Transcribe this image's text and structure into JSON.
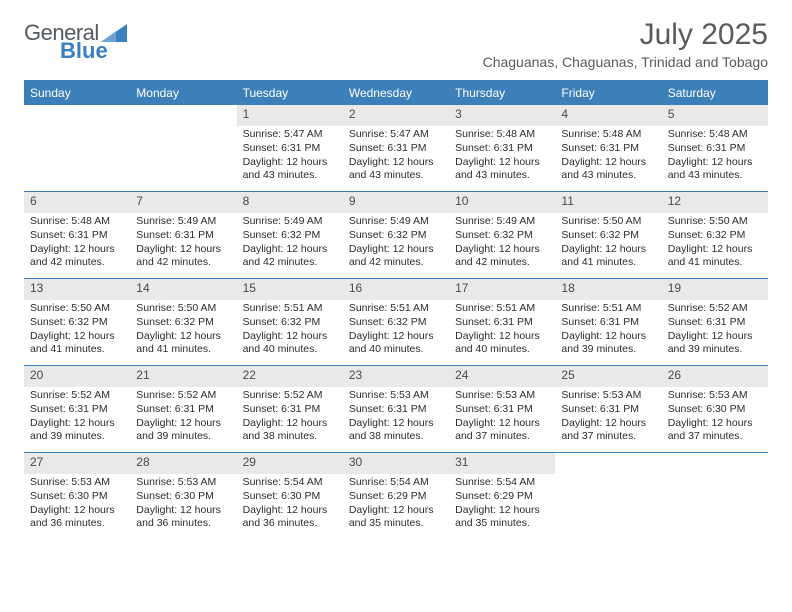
{
  "branding": {
    "word1": "General",
    "word2": "Blue",
    "word1_color": "#555a5f",
    "word2_color": "#3a7fbf",
    "sail_color": "#3a7fbf"
  },
  "title": "July 2025",
  "location": "Chaguanas, Chaguanas, Trinidad and Tobago",
  "colors": {
    "header_blue": "#3d7fb8",
    "daynum_bg": "#e9e9e9",
    "page_bg": "#ffffff",
    "body_text": "#2c2c2c",
    "muted_text": "#5b5b5b"
  },
  "day_labels": [
    "Sunday",
    "Monday",
    "Tuesday",
    "Wednesday",
    "Thursday",
    "Friday",
    "Saturday"
  ],
  "weeks": [
    [
      {
        "day": "",
        "sunrise": "",
        "sunset": "",
        "daylight": ""
      },
      {
        "day": "",
        "sunrise": "",
        "sunset": "",
        "daylight": ""
      },
      {
        "day": "1",
        "sunrise": "Sunrise: 5:47 AM",
        "sunset": "Sunset: 6:31 PM",
        "daylight": "Daylight: 12 hours and 43 minutes."
      },
      {
        "day": "2",
        "sunrise": "Sunrise: 5:47 AM",
        "sunset": "Sunset: 6:31 PM",
        "daylight": "Daylight: 12 hours and 43 minutes."
      },
      {
        "day": "3",
        "sunrise": "Sunrise: 5:48 AM",
        "sunset": "Sunset: 6:31 PM",
        "daylight": "Daylight: 12 hours and 43 minutes."
      },
      {
        "day": "4",
        "sunrise": "Sunrise: 5:48 AM",
        "sunset": "Sunset: 6:31 PM",
        "daylight": "Daylight: 12 hours and 43 minutes."
      },
      {
        "day": "5",
        "sunrise": "Sunrise: 5:48 AM",
        "sunset": "Sunset: 6:31 PM",
        "daylight": "Daylight: 12 hours and 43 minutes."
      }
    ],
    [
      {
        "day": "6",
        "sunrise": "Sunrise: 5:48 AM",
        "sunset": "Sunset: 6:31 PM",
        "daylight": "Daylight: 12 hours and 42 minutes."
      },
      {
        "day": "7",
        "sunrise": "Sunrise: 5:49 AM",
        "sunset": "Sunset: 6:31 PM",
        "daylight": "Daylight: 12 hours and 42 minutes."
      },
      {
        "day": "8",
        "sunrise": "Sunrise: 5:49 AM",
        "sunset": "Sunset: 6:32 PM",
        "daylight": "Daylight: 12 hours and 42 minutes."
      },
      {
        "day": "9",
        "sunrise": "Sunrise: 5:49 AM",
        "sunset": "Sunset: 6:32 PM",
        "daylight": "Daylight: 12 hours and 42 minutes."
      },
      {
        "day": "10",
        "sunrise": "Sunrise: 5:49 AM",
        "sunset": "Sunset: 6:32 PM",
        "daylight": "Daylight: 12 hours and 42 minutes."
      },
      {
        "day": "11",
        "sunrise": "Sunrise: 5:50 AM",
        "sunset": "Sunset: 6:32 PM",
        "daylight": "Daylight: 12 hours and 41 minutes."
      },
      {
        "day": "12",
        "sunrise": "Sunrise: 5:50 AM",
        "sunset": "Sunset: 6:32 PM",
        "daylight": "Daylight: 12 hours and 41 minutes."
      }
    ],
    [
      {
        "day": "13",
        "sunrise": "Sunrise: 5:50 AM",
        "sunset": "Sunset: 6:32 PM",
        "daylight": "Daylight: 12 hours and 41 minutes."
      },
      {
        "day": "14",
        "sunrise": "Sunrise: 5:50 AM",
        "sunset": "Sunset: 6:32 PM",
        "daylight": "Daylight: 12 hours and 41 minutes."
      },
      {
        "day": "15",
        "sunrise": "Sunrise: 5:51 AM",
        "sunset": "Sunset: 6:32 PM",
        "daylight": "Daylight: 12 hours and 40 minutes."
      },
      {
        "day": "16",
        "sunrise": "Sunrise: 5:51 AM",
        "sunset": "Sunset: 6:32 PM",
        "daylight": "Daylight: 12 hours and 40 minutes."
      },
      {
        "day": "17",
        "sunrise": "Sunrise: 5:51 AM",
        "sunset": "Sunset: 6:31 PM",
        "daylight": "Daylight: 12 hours and 40 minutes."
      },
      {
        "day": "18",
        "sunrise": "Sunrise: 5:51 AM",
        "sunset": "Sunset: 6:31 PM",
        "daylight": "Daylight: 12 hours and 39 minutes."
      },
      {
        "day": "19",
        "sunrise": "Sunrise: 5:52 AM",
        "sunset": "Sunset: 6:31 PM",
        "daylight": "Daylight: 12 hours and 39 minutes."
      }
    ],
    [
      {
        "day": "20",
        "sunrise": "Sunrise: 5:52 AM",
        "sunset": "Sunset: 6:31 PM",
        "daylight": "Daylight: 12 hours and 39 minutes."
      },
      {
        "day": "21",
        "sunrise": "Sunrise: 5:52 AM",
        "sunset": "Sunset: 6:31 PM",
        "daylight": "Daylight: 12 hours and 39 minutes."
      },
      {
        "day": "22",
        "sunrise": "Sunrise: 5:52 AM",
        "sunset": "Sunset: 6:31 PM",
        "daylight": "Daylight: 12 hours and 38 minutes."
      },
      {
        "day": "23",
        "sunrise": "Sunrise: 5:53 AM",
        "sunset": "Sunset: 6:31 PM",
        "daylight": "Daylight: 12 hours and 38 minutes."
      },
      {
        "day": "24",
        "sunrise": "Sunrise: 5:53 AM",
        "sunset": "Sunset: 6:31 PM",
        "daylight": "Daylight: 12 hours and 37 minutes."
      },
      {
        "day": "25",
        "sunrise": "Sunrise: 5:53 AM",
        "sunset": "Sunset: 6:31 PM",
        "daylight": "Daylight: 12 hours and 37 minutes."
      },
      {
        "day": "26",
        "sunrise": "Sunrise: 5:53 AM",
        "sunset": "Sunset: 6:30 PM",
        "daylight": "Daylight: 12 hours and 37 minutes."
      }
    ],
    [
      {
        "day": "27",
        "sunrise": "Sunrise: 5:53 AM",
        "sunset": "Sunset: 6:30 PM",
        "daylight": "Daylight: 12 hours and 36 minutes."
      },
      {
        "day": "28",
        "sunrise": "Sunrise: 5:53 AM",
        "sunset": "Sunset: 6:30 PM",
        "daylight": "Daylight: 12 hours and 36 minutes."
      },
      {
        "day": "29",
        "sunrise": "Sunrise: 5:54 AM",
        "sunset": "Sunset: 6:30 PM",
        "daylight": "Daylight: 12 hours and 36 minutes."
      },
      {
        "day": "30",
        "sunrise": "Sunrise: 5:54 AM",
        "sunset": "Sunset: 6:29 PM",
        "daylight": "Daylight: 12 hours and 35 minutes."
      },
      {
        "day": "31",
        "sunrise": "Sunrise: 5:54 AM",
        "sunset": "Sunset: 6:29 PM",
        "daylight": "Daylight: 12 hours and 35 minutes."
      },
      {
        "day": "",
        "sunrise": "",
        "sunset": "",
        "daylight": ""
      },
      {
        "day": "",
        "sunrise": "",
        "sunset": "",
        "daylight": ""
      }
    ]
  ]
}
